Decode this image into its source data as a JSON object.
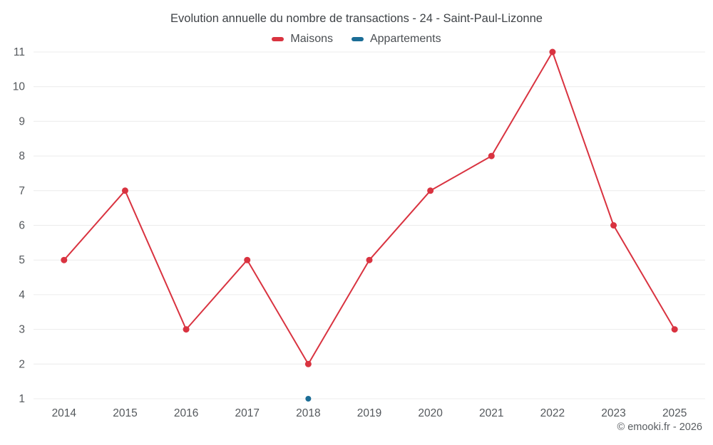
{
  "chart_data": {
    "type": "line",
    "title": "Evolution annuelle du nombre de transactions - 24 - Saint-Paul-Lizonne",
    "categories": [
      "2014",
      "2015",
      "2016",
      "2017",
      "2018",
      "2019",
      "2020",
      "2021",
      "2022",
      "2023",
      "2025"
    ],
    "series": [
      {
        "name": "Maisons",
        "color": "#d93340",
        "values": [
          5,
          7,
          3,
          5,
          2,
          5,
          7,
          8,
          11,
          6,
          3
        ]
      },
      {
        "name": "Appartements",
        "color": "#1b6d96",
        "values": [
          null,
          null,
          null,
          null,
          1,
          null,
          null,
          null,
          null,
          null,
          null
        ]
      }
    ],
    "ylim": [
      1,
      11
    ],
    "yticks": [
      1,
      2,
      3,
      4,
      5,
      6,
      7,
      8,
      9,
      10,
      11
    ],
    "grid": "horizontal",
    "legend_position": "top",
    "xlabel": "",
    "ylabel": ""
  },
  "footer": {
    "copyright": "© emooki.fr - 2026"
  },
  "colors": {
    "gridline": "#ececec",
    "axis_text": "#54585c",
    "title_text": "#3f4347"
  }
}
